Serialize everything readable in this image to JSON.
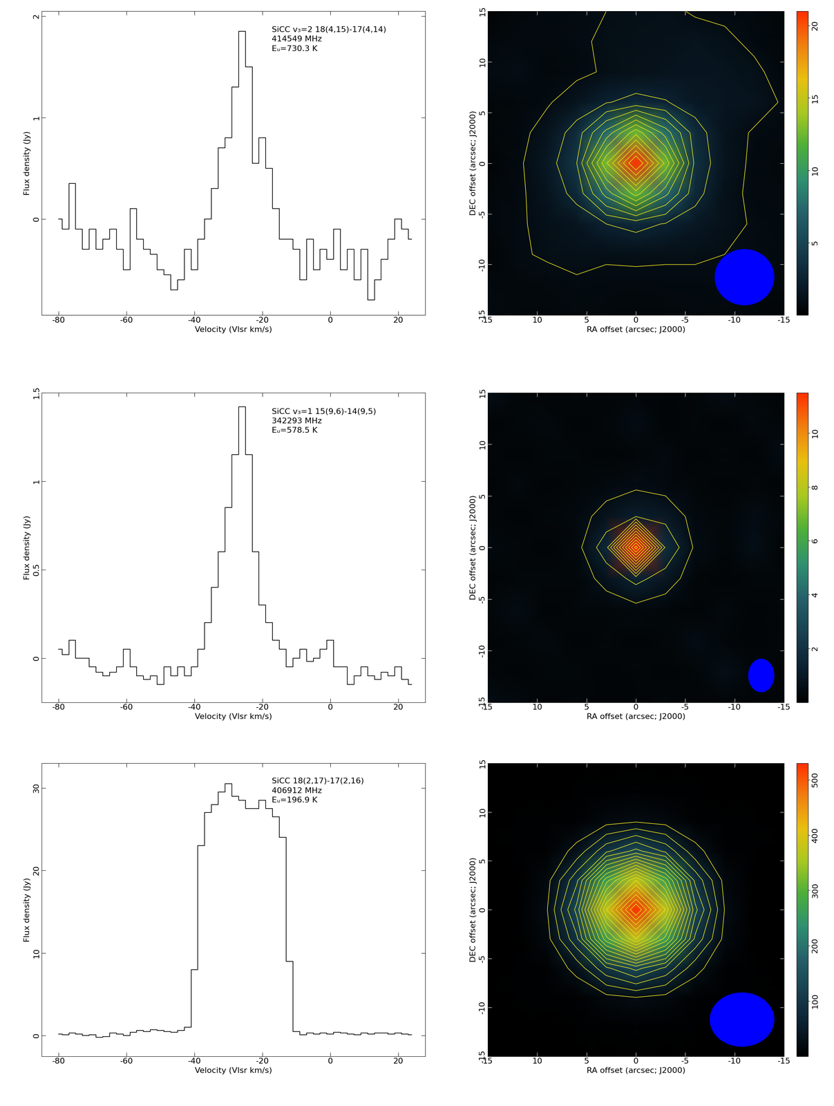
{
  "chart_data": [
    {
      "type": "step",
      "annotations": [
        "SiCC v₃=2 18(4,15)-17(4,14)",
        "414549 MHz",
        "Eᵤ=730.3 K"
      ],
      "xlabel": "Velocity (Vlsr km/s)",
      "ylabel": "Flux density (Jy)",
      "x": [
        -80,
        -78,
        -76,
        -74,
        -72,
        -70,
        -68,
        -66,
        -64,
        -62,
        -60,
        -58,
        -56,
        -54,
        -52,
        -50,
        -48,
        -46,
        -44,
        -42,
        -40,
        -38,
        -36,
        -34,
        -32,
        -30,
        -28,
        -26,
        -24,
        -22,
        -20,
        -18,
        -16,
        -14,
        -12,
        -10,
        -8,
        -6,
        -4,
        -2,
        0,
        2,
        4,
        6,
        8,
        10,
        12,
        14,
        16,
        18,
        20,
        22,
        24
      ],
      "values": [
        0.0,
        -0.1,
        0.35,
        -0.1,
        -0.3,
        -0.1,
        -0.3,
        -0.2,
        -0.1,
        -0.3,
        -0.5,
        0.1,
        -0.2,
        -0.3,
        -0.35,
        -0.5,
        -0.55,
        -0.7,
        -0.6,
        -0.3,
        -0.5,
        -0.2,
        0.0,
        0.3,
        0.7,
        0.8,
        1.3,
        1.85,
        1.5,
        0.55,
        0.8,
        0.5,
        0.1,
        -0.2,
        -0.2,
        -0.3,
        -0.6,
        -0.2,
        -0.5,
        -0.3,
        -0.4,
        -0.1,
        -0.5,
        -0.3,
        -0.6,
        -0.3,
        -0.8,
        -0.6,
        -0.4,
        -0.2,
        0.0,
        -0.1,
        -0.2
      ],
      "xlim": [
        -85,
        28
      ],
      "ylim": [
        -0.95,
        2.05
      ],
      "xticks": [
        -80,
        -60,
        -40,
        -20,
        0,
        20
      ],
      "yticks": [
        0,
        1,
        2
      ],
      "color": "#000000"
    },
    {
      "type": "heatmap",
      "xlabel": "RA offset (arcsec; J2000)",
      "ylabel": "DEC offset (arcsec; J2000)",
      "x": [
        15,
        12,
        9,
        6,
        3,
        0,
        -3,
        -6,
        -9,
        -12,
        -15
      ],
      "y": [
        15,
        12,
        9,
        6,
        3,
        0,
        -3,
        -6,
        -9,
        -12,
        -15
      ],
      "cells": [
        [
          0.4,
          0.6,
          0.8,
          0.9,
          1.0,
          1.1,
          1.2,
          0.9,
          0.8,
          0.7,
          0.5
        ],
        [
          0.6,
          0.8,
          0.7,
          0.9,
          1.1,
          1.2,
          1.3,
          1.4,
          1.2,
          0.8,
          0.5
        ],
        [
          0.9,
          1.0,
          0.6,
          0.8,
          1.1,
          1.3,
          1.4,
          1.6,
          1.5,
          1.2,
          0.6
        ],
        [
          0.5,
          0.6,
          0.9,
          1.5,
          2.4,
          3.0,
          2.6,
          1.8,
          1.6,
          1.4,
          0.9
        ],
        [
          0.5,
          0.7,
          1.4,
          3.2,
          7.5,
          12.5,
          7.8,
          3.2,
          1.4,
          0.9,
          0.7
        ],
        [
          0.4,
          0.8,
          1.8,
          4.0,
          12.8,
          21.0,
          12.6,
          3.6,
          1.5,
          0.8,
          0.6
        ],
        [
          0.5,
          0.8,
          1.5,
          3.0,
          7.6,
          12.2,
          7.4,
          3.0,
          1.3,
          0.8,
          0.7
        ],
        [
          0.6,
          0.9,
          1.2,
          1.6,
          2.5,
          3.0,
          2.4,
          1.8,
          1.3,
          0.9,
          0.8
        ],
        [
          0.4,
          0.9,
          1.1,
          1.2,
          1.1,
          1.2,
          1.1,
          1.1,
          1.0,
          0.9,
          0.8
        ],
        [
          0.7,
          0.6,
          0.7,
          0.9,
          0.8,
          0.7,
          0.8,
          0.8,
          0.9,
          0.7,
          0.6
        ],
        [
          0.8,
          0.6,
          0.5,
          0.7,
          0.6,
          0.5,
          0.6,
          0.7,
          0.6,
          0.5,
          0.4
        ]
      ],
      "contours": [
        1.0,
        2.5,
        4,
        5.5,
        7,
        8.5,
        10,
        11.5,
        13,
        14.5,
        16,
        17.5,
        19
      ],
      "beam": [
        6.0,
        5.5
      ],
      "colorbar_lim": [
        0,
        21
      ],
      "colorbar_ticks": [
        5,
        10,
        15,
        20
      ],
      "xlim": [
        15,
        -15
      ],
      "ylim": [
        -15,
        15
      ],
      "xticks": [
        15,
        10,
        5,
        0,
        -5,
        -10,
        -15
      ],
      "yticks": [
        -15,
        -10,
        -5,
        0,
        5,
        10,
        15
      ]
    },
    {
      "type": "step",
      "annotations": [
        "SiCC v₃=1 15(9,6)-14(9,5)",
        "342293 MHz",
        "Eᵤ=578.5 K"
      ],
      "xlabel": "Velocity (Vlsr km/s)",
      "ylabel": "Flux density (Jy)",
      "x": [
        -80,
        -78,
        -76,
        -74,
        -72,
        -70,
        -68,
        -66,
        -64,
        -62,
        -60,
        -58,
        -56,
        -54,
        -52,
        -50,
        -48,
        -46,
        -44,
        -42,
        -40,
        -38,
        -36,
        -34,
        -32,
        -30,
        -28,
        -26,
        -24,
        -22,
        -20,
        -18,
        -16,
        -14,
        -12,
        -10,
        -8,
        -6,
        -4,
        -2,
        0,
        2,
        4,
        6,
        8,
        10,
        12,
        14,
        16,
        18,
        20,
        22,
        24
      ],
      "values": [
        0.05,
        0.02,
        0.1,
        0.0,
        0.0,
        -0.05,
        -0.08,
        -0.1,
        -0.08,
        -0.05,
        0.05,
        -0.05,
        -0.1,
        -0.12,
        -0.1,
        -0.15,
        -0.05,
        -0.1,
        -0.05,
        -0.1,
        -0.05,
        0.05,
        0.2,
        0.4,
        0.6,
        0.85,
        1.15,
        1.42,
        1.15,
        0.6,
        0.3,
        0.2,
        0.1,
        0.05,
        -0.05,
        0.0,
        0.05,
        -0.02,
        0.0,
        0.05,
        0.1,
        -0.05,
        -0.05,
        -0.15,
        -0.1,
        -0.05,
        -0.1,
        -0.12,
        -0.08,
        -0.1,
        -0.05,
        -0.12,
        -0.15
      ],
      "xlim": [
        -85,
        28
      ],
      "ylim": [
        -0.25,
        1.5
      ],
      "xticks": [
        -80,
        -60,
        -40,
        -20,
        0,
        20
      ],
      "yticks": [
        0,
        0.5,
        1,
        1.5
      ],
      "color": "#000000"
    },
    {
      "type": "heatmap",
      "xlabel": "RA offset (arcsec; J2000)",
      "ylabel": "DEC offset (arcsec; J2000)",
      "x": [
        15,
        12,
        9,
        6,
        3,
        0,
        -3,
        -6,
        -9,
        -12,
        -15
      ],
      "y": [
        15,
        12,
        9,
        6,
        3,
        0,
        -3,
        -6,
        -9,
        -12,
        -15
      ],
      "cells": [
        [
          0.6,
          0.3,
          0.2,
          0.3,
          0.2,
          0.3,
          0.2,
          0.3,
          0.5,
          0.3,
          0.2
        ],
        [
          0.2,
          0.3,
          0.4,
          0.2,
          0.3,
          0.5,
          0.2,
          0.3,
          0.2,
          0.4,
          0.3
        ],
        [
          0.3,
          0.2,
          0.3,
          0.3,
          0.2,
          0.3,
          0.4,
          0.2,
          0.3,
          0.2,
          0.5
        ],
        [
          0.2,
          0.4,
          0.2,
          0.3,
          0.4,
          0.5,
          0.4,
          0.3,
          0.2,
          0.3,
          0.2
        ],
        [
          0.3,
          0.2,
          0.3,
          0.4,
          0.8,
          1.2,
          1.0,
          0.4,
          0.3,
          0.5,
          0.3
        ],
        [
          0.4,
          0.3,
          0.2,
          0.4,
          1.6,
          11.5,
          1.8,
          0.5,
          0.3,
          0.6,
          0.2
        ],
        [
          0.2,
          0.3,
          0.3,
          0.3,
          0.8,
          1.4,
          0.9,
          0.3,
          0.2,
          0.3,
          0.3
        ],
        [
          0.3,
          0.5,
          0.2,
          0.3,
          0.3,
          0.4,
          0.3,
          0.2,
          0.4,
          0.2,
          0.3
        ],
        [
          0.2,
          0.3,
          0.4,
          0.2,
          0.3,
          0.2,
          0.3,
          0.5,
          0.3,
          0.2,
          0.3
        ],
        [
          0.3,
          0.2,
          0.3,
          0.3,
          0.2,
          0.3,
          0.2,
          0.3,
          0.6,
          0.3,
          0.2
        ],
        [
          0.5,
          0.4,
          0.2,
          0.3,
          0.2,
          0.2,
          0.3,
          0.2,
          0.3,
          0.2,
          0.3
        ]
      ],
      "contours": [
        0.6,
        1.2,
        2,
        3,
        4,
        5,
        6,
        7,
        8,
        9,
        10,
        11
      ],
      "beam": [
        2.6,
        3.2
      ],
      "colorbar_lim": [
        0,
        11.5
      ],
      "colorbar_ticks": [
        2,
        4,
        6,
        8,
        10
      ],
      "xlim": [
        15,
        -15
      ],
      "ylim": [
        -15,
        15
      ],
      "xticks": [
        15,
        10,
        5,
        0,
        -5,
        -10,
        -15
      ],
      "yticks": [
        -15,
        -10,
        -5,
        0,
        5,
        10,
        15
      ]
    },
    {
      "type": "step",
      "annotations": [
        "SiCC 18(2,17)-17(2,16)",
        "406912 MHz",
        "Eᵤ=196.9 K"
      ],
      "xlabel": "Velocity (Vlsr km/s)",
      "ylabel": "Flux density (Jy)",
      "x": [
        -80,
        -78,
        -76,
        -74,
        -72,
        -70,
        -68,
        -66,
        -64,
        -62,
        -60,
        -58,
        -56,
        -54,
        -52,
        -50,
        -48,
        -46,
        -44,
        -42,
        -40,
        -38,
        -36,
        -34,
        -32,
        -30,
        -28,
        -26,
        -24,
        -22,
        -20,
        -18,
        -16,
        -14,
        -12,
        -10,
        -8,
        -6,
        -4,
        -2,
        0,
        2,
        4,
        6,
        8,
        10,
        12,
        14,
        16,
        18,
        20,
        22,
        24
      ],
      "values": [
        0.2,
        0.1,
        0.3,
        0.2,
        0.0,
        0.1,
        -0.2,
        -0.1,
        0.3,
        0.2,
        0.0,
        0.4,
        0.6,
        0.5,
        0.7,
        0.6,
        0.5,
        0.4,
        0.6,
        1.0,
        8.0,
        23,
        27,
        28,
        29.5,
        30.5,
        29,
        28.5,
        27.5,
        27.5,
        28.5,
        27.5,
        26.5,
        24,
        9,
        0.5,
        0.1,
        0.3,
        0.2,
        0.3,
        0.2,
        0.4,
        0.3,
        0.2,
        0.1,
        0.3,
        0.2,
        0.3,
        0.3,
        0.2,
        0.3,
        0.2,
        0.1
      ],
      "xlim": [
        -85,
        28
      ],
      "ylim": [
        -2.5,
        33
      ],
      "xticks": [
        -80,
        -60,
        -40,
        -20,
        0,
        20
      ],
      "yticks": [
        0,
        10,
        20,
        30
      ],
      "color": "#000000"
    },
    {
      "type": "heatmap",
      "xlabel": "RA offset (arcsec; J2000)",
      "ylabel": "DEC offset (arcsec; J2000)",
      "x": [
        15,
        12,
        9,
        6,
        3,
        0,
        -3,
        -6,
        -9,
        -12,
        -15
      ],
      "y": [
        15,
        12,
        9,
        6,
        3,
        0,
        -3,
        -6,
        -9,
        -12,
        -15
      ],
      "cells": [
        [
          1,
          1,
          2,
          2,
          2,
          2,
          2,
          2,
          2,
          1,
          1
        ],
        [
          2,
          2,
          2,
          3,
          4,
          5,
          4,
          3,
          2,
          2,
          2
        ],
        [
          2,
          3,
          4,
          6,
          17,
          24,
          17,
          6,
          4,
          3,
          2
        ],
        [
          2,
          3,
          6,
          33,
          94,
          133,
          94,
          33,
          6,
          3,
          2
        ],
        [
          2,
          2,
          17,
          94,
          265,
          375,
          265,
          94,
          17,
          2,
          2
        ],
        [
          2,
          2,
          24,
          133,
          375,
          530,
          375,
          133,
          24,
          2,
          2
        ],
        [
          2,
          2,
          17,
          94,
          265,
          375,
          265,
          94,
          17,
          2,
          2
        ],
        [
          2,
          3,
          6,
          33,
          94,
          133,
          94,
          33,
          6,
          3,
          2
        ],
        [
          2,
          3,
          4,
          6,
          17,
          24,
          17,
          6,
          4,
          3,
          2
        ],
        [
          2,
          2,
          2,
          3,
          4,
          5,
          4,
          3,
          2,
          2,
          2
        ],
        [
          1,
          1,
          2,
          2,
          2,
          2,
          2,
          2,
          2,
          1,
          1
        ]
      ],
      "contours": [
        25,
        50,
        75,
        100,
        125,
        150,
        175,
        200,
        225,
        250,
        275,
        300,
        325,
        350,
        375,
        400,
        425,
        450,
        475,
        500
      ],
      "beam": [
        6.5,
        5.5
      ],
      "colorbar_lim": [
        0,
        530
      ],
      "colorbar_ticks": [
        100,
        200,
        300,
        400,
        500
      ],
      "xlim": [
        15,
        -15
      ],
      "ylim": [
        -15,
        15
      ],
      "xticks": [
        15,
        10,
        5,
        0,
        -5,
        -10,
        -15
      ],
      "yticks": [
        -15,
        -10,
        -5,
        0,
        5,
        10,
        15
      ]
    }
  ]
}
